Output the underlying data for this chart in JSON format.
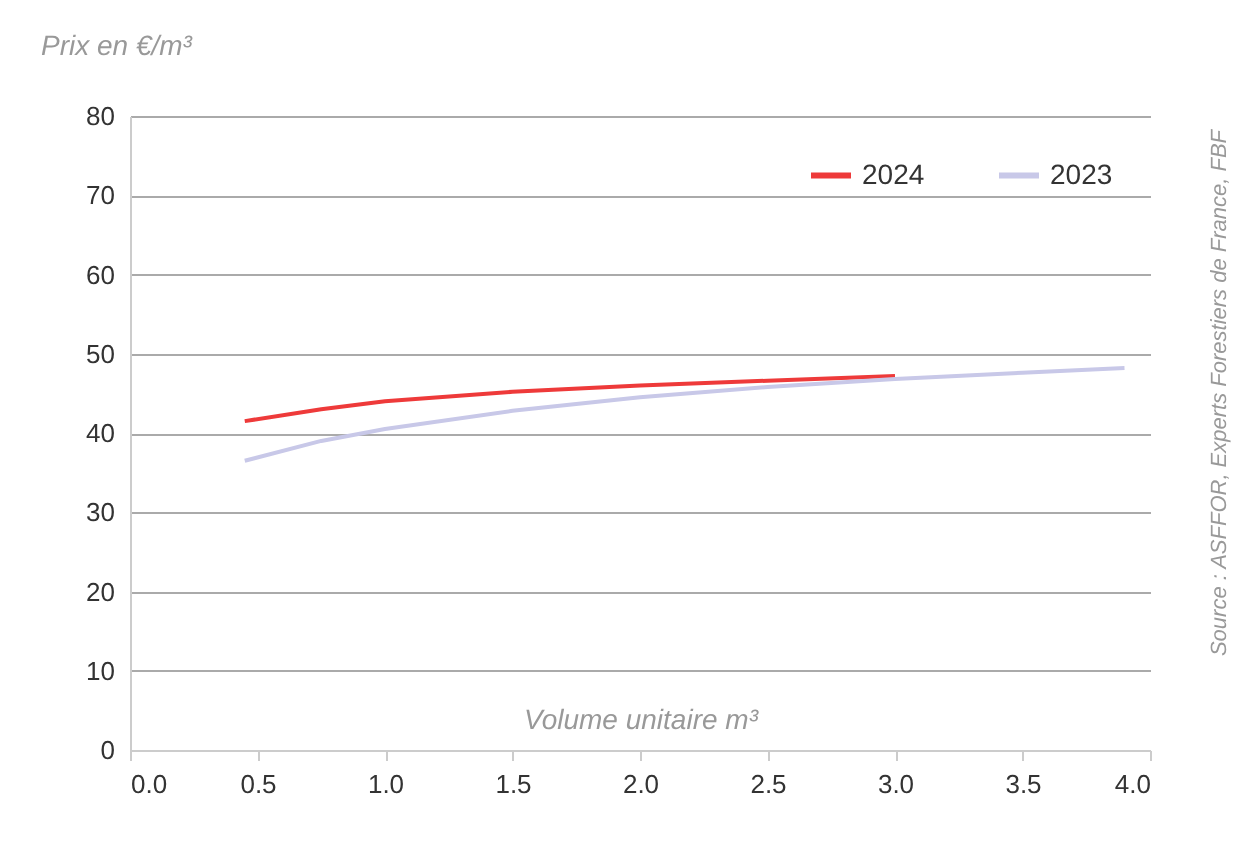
{
  "chart_data": {
    "type": "line",
    "ylabel": "Prix en €/m³",
    "xlabel": "Volume unitaire m³",
    "xlim": [
      0,
      4
    ],
    "xticks": [
      {
        "value": 0,
        "label": "0.0"
      },
      {
        "value": 0.5,
        "label": "0.5"
      },
      {
        "value": 1,
        "label": "1.0"
      },
      {
        "value": 1.5,
        "label": "1.5"
      },
      {
        "value": 2,
        "label": "2.0"
      },
      {
        "value": 2.5,
        "label": "2.5"
      },
      {
        "value": 3,
        "label": "3.0"
      },
      {
        "value": 3.5,
        "label": "3.5"
      },
      {
        "value": 4,
        "label": "4.0"
      }
    ],
    "ylim": [
      0,
      80
    ],
    "yticks": [
      0,
      10,
      20,
      30,
      40,
      50,
      60,
      70,
      80
    ],
    "grid": "y",
    "legend": "top right",
    "series": [
      {
        "name": "2024",
        "color": "#ee3a3a",
        "x": [
          0.45,
          0.75,
          1.0,
          1.5,
          2.0,
          2.5,
          3.0
        ],
        "values": [
          41.5,
          43,
          44,
          45.2,
          46,
          46.6,
          47.2
        ]
      },
      {
        "name": "2023",
        "color": "#c8c8e8",
        "x": [
          0.45,
          0.75,
          1.0,
          1.5,
          2.0,
          2.5,
          3.0,
          3.5,
          3.9
        ],
        "values": [
          36.5,
          39,
          40.5,
          42.8,
          44.5,
          45.8,
          46.8,
          47.6,
          48.2
        ]
      }
    ],
    "annotations": [
      "Source : ASFFOR, Experts Forestiers de France, FBF"
    ]
  }
}
